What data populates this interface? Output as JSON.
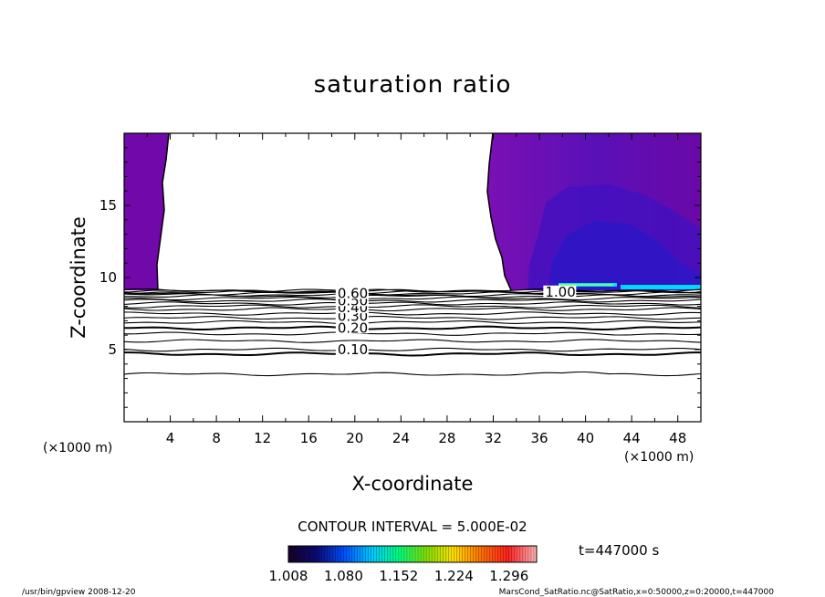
{
  "chart_data": {
    "type": "heatmap",
    "title": "saturation ratio",
    "xlabel": "X-coordinate",
    "ylabel": "Z-coordinate",
    "x_unit": "(×1000 m)",
    "y_unit": "(×1000 m)",
    "xlim": [
      0,
      50
    ],
    "ylim": [
      0,
      20
    ],
    "x_ticks": [
      4,
      8,
      12,
      16,
      20,
      24,
      28,
      32,
      36,
      40,
      44,
      48
    ],
    "y_ticks": [
      5,
      10,
      15
    ],
    "contour_interval_text": "CONTOUR INTERVAL = 5.000E-02",
    "time_text": "t=447000 s",
    "colorbar": {
      "min": 1.008,
      "max": 1.332,
      "tick_labels": [
        "1.008",
        "1.080",
        "1.152",
        "1.224",
        "1.296"
      ],
      "colors": [
        "#180028",
        "#0a0a78",
        "#0050ff",
        "#00c8ff",
        "#00ff80",
        "#80e000",
        "#ffe000",
        "#ff7000",
        "#ff2020",
        "#ffb0b0"
      ]
    },
    "contour_labels": [
      {
        "text": "0.10",
        "x": 18.5,
        "z": 5.0
      },
      {
        "text": "0.20",
        "x": 18.5,
        "z": 6.5
      },
      {
        "text": "0.30",
        "x": 18.5,
        "z": 7.3
      },
      {
        "text": "0.40",
        "x": 18.5,
        "z": 7.9
      },
      {
        "text": "0.50",
        "x": 18.5,
        "z": 8.4
      },
      {
        "text": "0.60",
        "x": 18.5,
        "z": 8.9
      },
      {
        "text": "1.00",
        "x": 36.5,
        "z": 9.0
      }
    ],
    "colors": {
      "fill_dark": "#6e00a8",
      "fill_mid": "#5a0ab0",
      "fill_blue": "#3010c8",
      "cyan": "#00e0ff"
    }
  },
  "footer": {
    "left": "/usr/bin/gpview   2008-12-20",
    "right": "MarsCond_SatRatio.nc@SatRatio,x=0:50000,z=0:20000,t=447000"
  }
}
